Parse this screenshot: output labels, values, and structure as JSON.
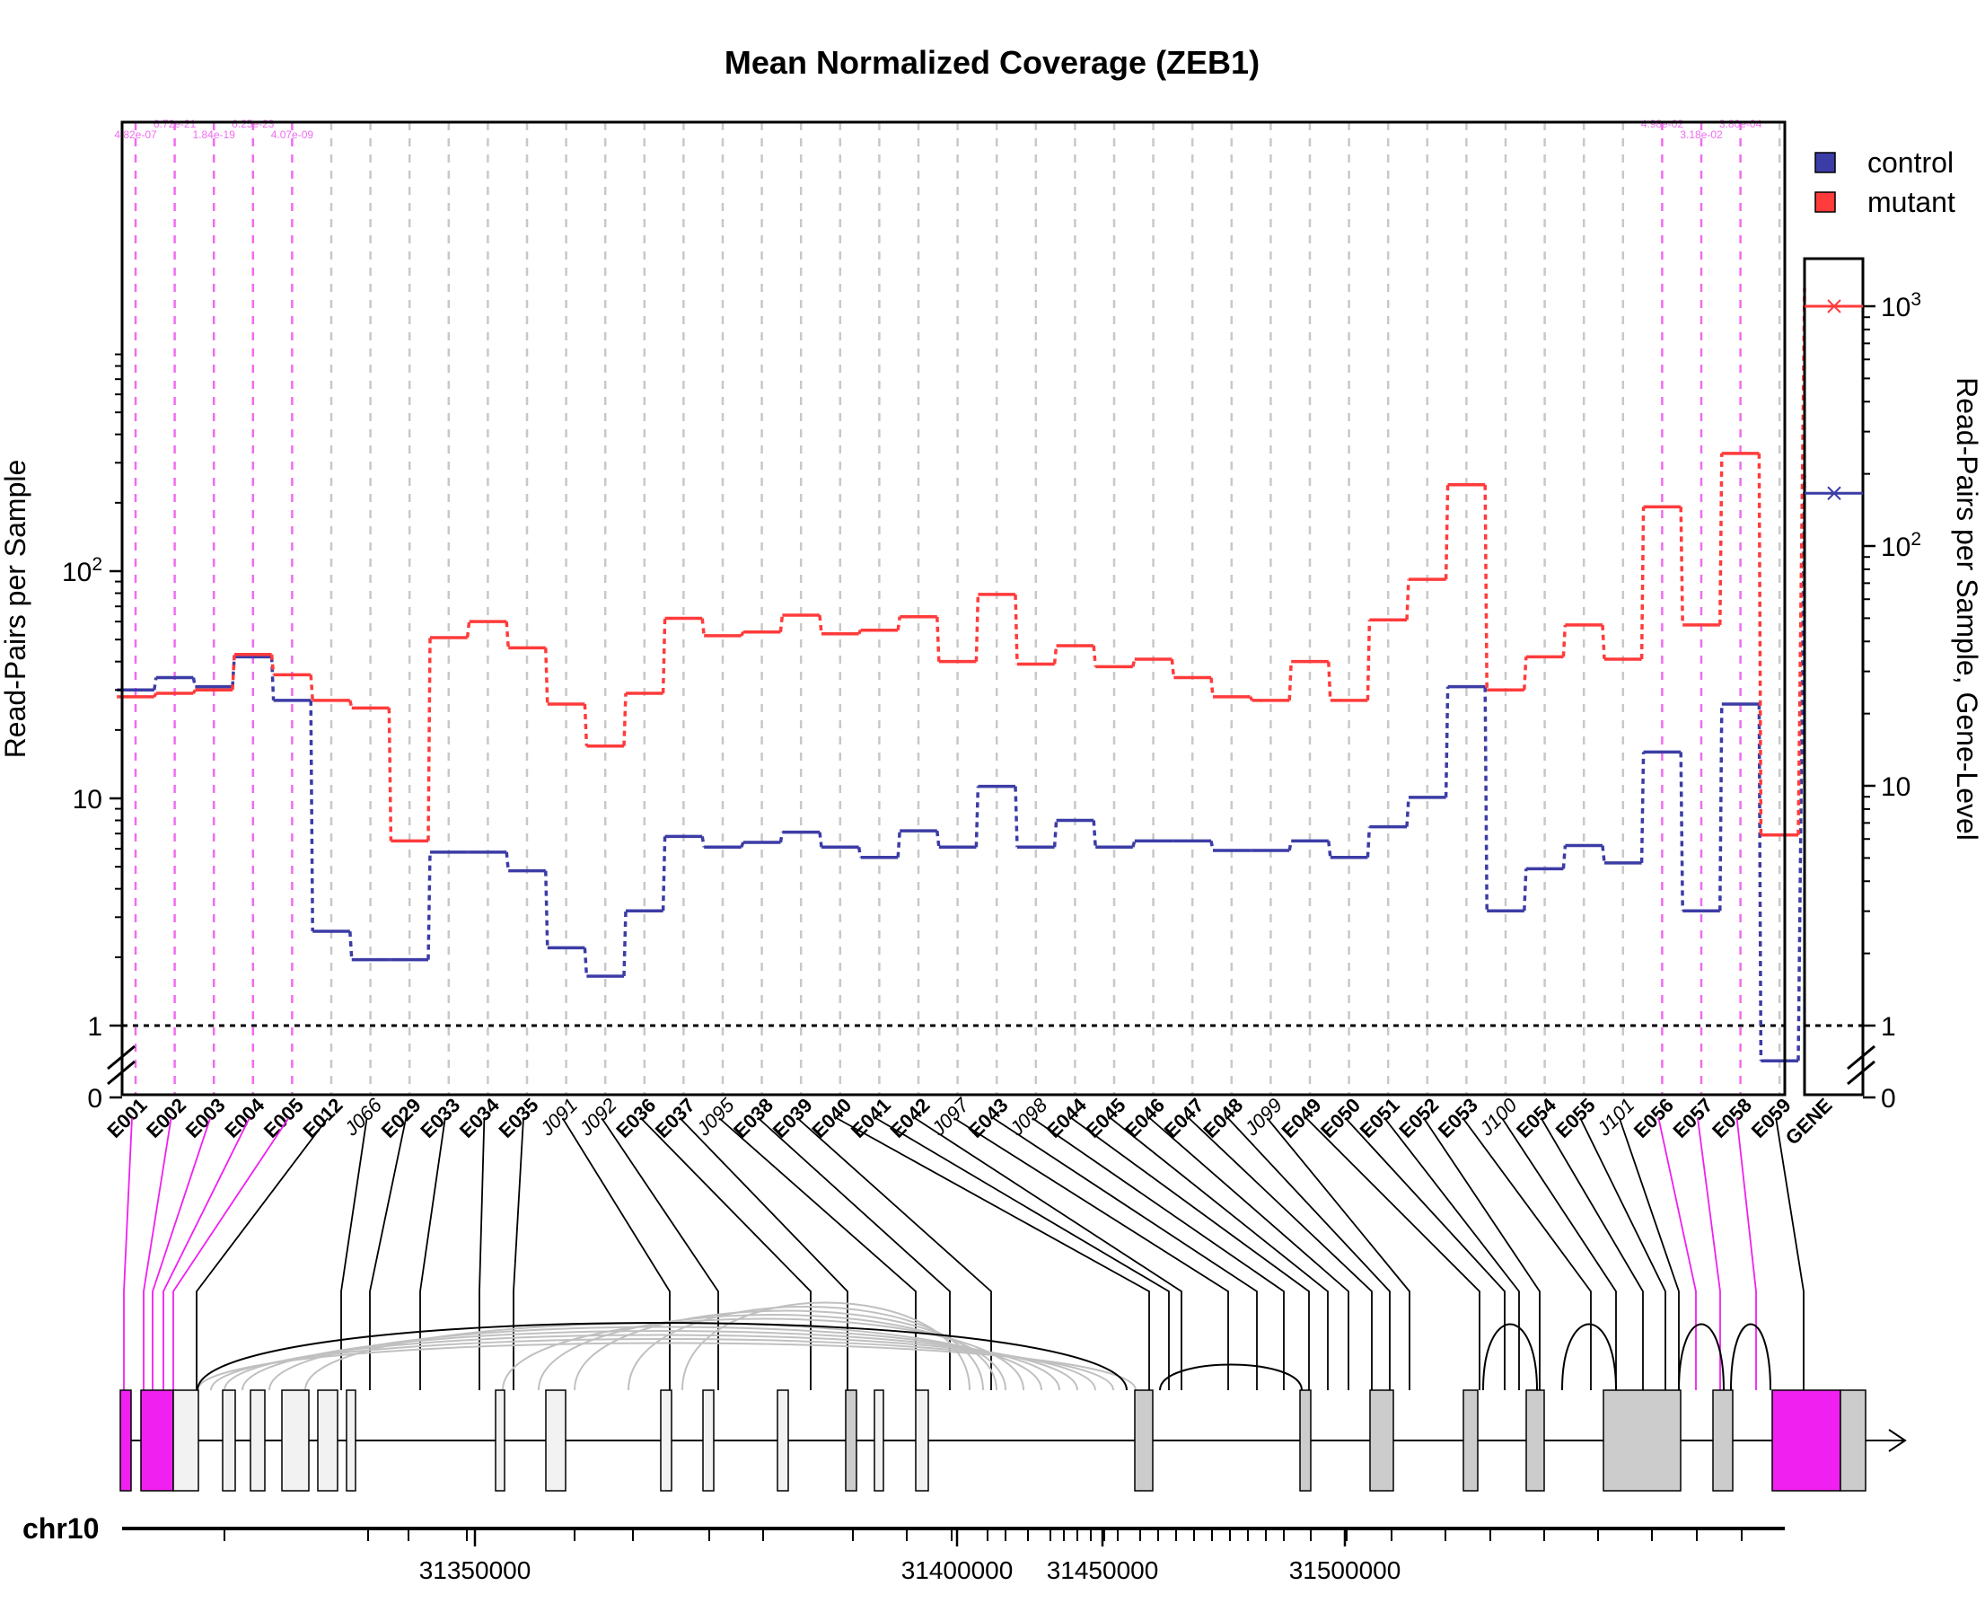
{
  "chart_data": {
    "type": "line",
    "title": "Mean Normalized Coverage (ZEB1)",
    "ylabel": "Read-Pairs per Sample",
    "ylabel_right": "Read-Pairs per Sample, Gene-Level",
    "yscale": "log",
    "ylim": [
      0,
      450
    ],
    "yticks_left": [
      "0",
      "1",
      "10",
      "10^2"
    ],
    "yticks_right": [
      "0",
      "1",
      "10",
      "10^2",
      "10^3"
    ],
    "grid": true,
    "legend_position": "top-right",
    "colors": {
      "control": "#3c3ca6",
      "mutant": "#ff3b3b",
      "significant": "#f06cf0"
    },
    "categories": [
      "E001",
      "E002",
      "E003",
      "E004",
      "E005",
      "E012",
      "J066",
      "E029",
      "E033",
      "E034",
      "E035",
      "J091",
      "J092",
      "E036",
      "E037",
      "J095",
      "E038",
      "E039",
      "E040",
      "E041",
      "E042",
      "J097",
      "E043",
      "J098",
      "E044",
      "E045",
      "E046",
      "E047",
      "E048",
      "J099",
      "E049",
      "E050",
      "E051",
      "E052",
      "E053",
      "J100",
      "E054",
      "E055",
      "J101",
      "E056",
      "E057",
      "E058",
      "E059"
    ],
    "junctions": [
      "J066",
      "J091",
      "J092",
      "J095",
      "J097",
      "J098",
      "J099",
      "J100",
      "J101"
    ],
    "significant": [
      "E001",
      "E002",
      "E003",
      "E004",
      "E005",
      "E056",
      "E057",
      "E058"
    ],
    "series": [
      {
        "name": "control",
        "values": [
          30,
          34,
          31,
          42,
          27,
          2.6,
          1.95,
          1.95,
          5.8,
          5.8,
          4.8,
          2.2,
          1.65,
          3.2,
          6.8,
          6.1,
          6.4,
          7.1,
          6.1,
          5.5,
          7.2,
          6.1,
          11.3,
          6.1,
          8.0,
          6.1,
          6.5,
          6.5,
          5.9,
          5.9,
          6.5,
          5.5,
          7.5,
          10.1,
          31,
          3.2,
          4.9,
          6.2,
          5.2,
          16,
          3.2,
          26,
          0.7
        ]
      },
      {
        "name": "mutant",
        "values": [
          28,
          29,
          30,
          43,
          35,
          27,
          25,
          6.5,
          51,
          60,
          46,
          26,
          17,
          29,
          62,
          52,
          54,
          64,
          53,
          55,
          63,
          40,
          79,
          39,
          47,
          38,
          41,
          34,
          28,
          27,
          40,
          27,
          61,
          92,
          240,
          30,
          42,
          58,
          41,
          192,
          58,
          330,
          6.9
        ]
      }
    ],
    "significance_labels": [
      "4.82e-07",
      "6.72e-21",
      "1.84e-19",
      "6.25e-23",
      "4.07e-09",
      "4.98e-02",
      "3.18e-02",
      "3.80e-04"
    ],
    "gene_level": {
      "label": "GENE",
      "control": 166,
      "mutant": 1000,
      "ylim": [
        0,
        1500
      ]
    },
    "gene_track": {
      "chromosome": "chr10",
      "tick_labels": [
        "31350000",
        "31400000",
        "31450000",
        "31500000"
      ]
    }
  }
}
